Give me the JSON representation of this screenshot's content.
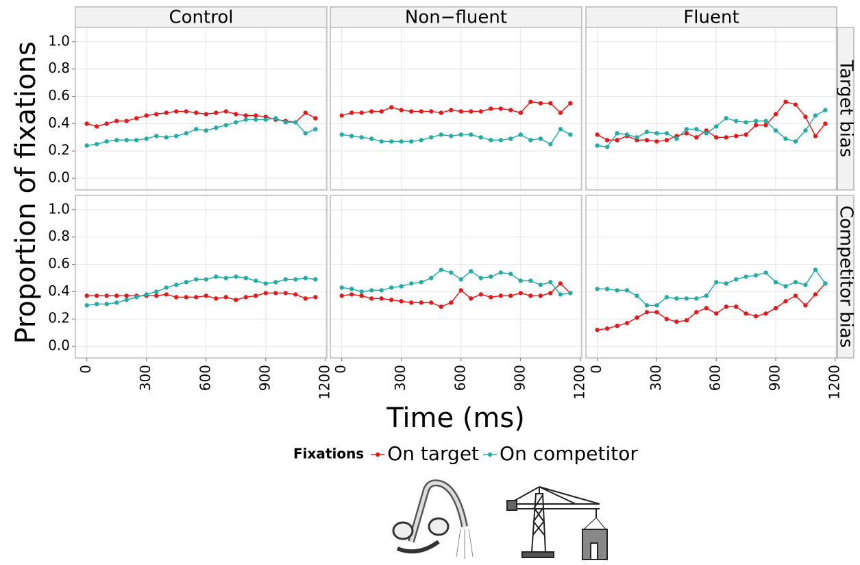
{
  "chart_data": [
    {
      "type": "line",
      "x": [
        0,
        50,
        100,
        150,
        200,
        250,
        300,
        350,
        400,
        450,
        500,
        550,
        600,
        650,
        700,
        750,
        800,
        850,
        900,
        950,
        1000,
        1050,
        1100,
        1150
      ],
      "series": [
        {
          "name": "On target",
          "color": "#e31a1c",
          "values": [
            0.4,
            0.38,
            0.4,
            0.42,
            0.42,
            0.44,
            0.46,
            0.47,
            0.48,
            0.49,
            0.49,
            0.48,
            0.47,
            0.48,
            0.49,
            0.47,
            0.46,
            0.46,
            0.45,
            0.43,
            0.42,
            0.41,
            0.48,
            0.44
          ]
        },
        {
          "name": "On competitor",
          "color": "#26aba4",
          "values": [
            0.24,
            0.25,
            0.27,
            0.28,
            0.28,
            0.28,
            0.29,
            0.31,
            0.3,
            0.31,
            0.33,
            0.36,
            0.35,
            0.37,
            0.39,
            0.41,
            0.43,
            0.43,
            0.43,
            0.44,
            0.41,
            0.41,
            0.33,
            0.36
          ]
        }
      ],
      "xlim": [
        -57.5,
        1207.5
      ],
      "ylim": [
        -0.085,
        1.105
      ],
      "xticks": [
        0,
        300,
        600,
        900,
        1200
      ],
      "yticks": [
        {
          "value": 0,
          "label": "0.0"
        },
        0.2,
        0.4,
        0.6,
        0.8,
        {
          "value": 1,
          "label": "1.0"
        }
      ],
      "grid": true
    },
    {
      "type": "line",
      "x": [
        0,
        50,
        100,
        150,
        200,
        250,
        300,
        350,
        400,
        450,
        500,
        550,
        600,
        650,
        700,
        750,
        800,
        850,
        900,
        950,
        1000,
        1050,
        1100,
        1150
      ],
      "series": [
        {
          "name": "On target",
          "color": "#e31a1c",
          "values": [
            0.46,
            0.48,
            0.48,
            0.49,
            0.49,
            0.52,
            0.5,
            0.49,
            0.49,
            0.49,
            0.48,
            0.5,
            0.49,
            0.49,
            0.49,
            0.51,
            0.51,
            0.5,
            0.48,
            0.56,
            0.55,
            0.55,
            0.48,
            0.55
          ]
        },
        {
          "name": "On competitor",
          "color": "#26aba4",
          "values": [
            0.32,
            0.31,
            0.3,
            0.29,
            0.27,
            0.27,
            0.27,
            0.27,
            0.28,
            0.3,
            0.32,
            0.31,
            0.32,
            0.32,
            0.3,
            0.28,
            0.28,
            0.29,
            0.32,
            0.28,
            0.29,
            0.25,
            0.36,
            0.32
          ]
        }
      ],
      "xlim": [
        -57.5,
        1207.5
      ],
      "ylim": [
        -0.085,
        1.105
      ],
      "xticks": [
        0,
        300,
        600,
        900,
        1200
      ],
      "yticks": [
        {
          "value": 0,
          "label": "0.0"
        },
        0.2,
        0.4,
        0.6,
        0.8,
        {
          "value": 1,
          "label": "1.0"
        }
      ],
      "grid": true
    },
    {
      "type": "line",
      "x": [
        0,
        50,
        100,
        150,
        200,
        250,
        300,
        350,
        400,
        450,
        500,
        550,
        600,
        650,
        700,
        750,
        800,
        850,
        900,
        950,
        1000,
        1050,
        1100,
        1150
      ],
      "series": [
        {
          "name": "On target",
          "color": "#e31a1c",
          "values": [
            0.32,
            0.28,
            0.28,
            0.31,
            0.28,
            0.28,
            0.27,
            0.28,
            0.31,
            0.33,
            0.3,
            0.35,
            0.3,
            0.3,
            0.31,
            0.32,
            0.39,
            0.39,
            0.47,
            0.56,
            0.54,
            0.45,
            0.31,
            0.4
          ]
        },
        {
          "name": "On competitor",
          "color": "#26aba4",
          "values": [
            0.24,
            0.23,
            0.33,
            0.32,
            0.3,
            0.34,
            0.33,
            0.33,
            0.29,
            0.36,
            0.36,
            0.33,
            0.38,
            0.44,
            0.42,
            0.41,
            0.42,
            0.42,
            0.35,
            0.29,
            0.27,
            0.35,
            0.46,
            0.5
          ]
        }
      ],
      "xlim": [
        -57.5,
        1207.5
      ],
      "ylim": [
        -0.085,
        1.105
      ],
      "xticks": [
        0,
        300,
        600,
        900,
        1200
      ],
      "yticks": [
        {
          "value": 0,
          "label": "0.0"
        },
        0.2,
        0.4,
        0.6,
        0.8,
        {
          "value": 1,
          "label": "1.0"
        }
      ],
      "grid": true
    },
    {
      "type": "line",
      "x": [
        0,
        50,
        100,
        150,
        200,
        250,
        300,
        350,
        400,
        450,
        500,
        550,
        600,
        650,
        700,
        750,
        800,
        850,
        900,
        950,
        1000,
        1050,
        1100,
        1150
      ],
      "series": [
        {
          "name": "On target",
          "color": "#e31a1c",
          "values": [
            0.37,
            0.37,
            0.37,
            0.37,
            0.37,
            0.37,
            0.37,
            0.37,
            0.38,
            0.36,
            0.36,
            0.36,
            0.37,
            0.35,
            0.36,
            0.34,
            0.36,
            0.37,
            0.39,
            0.39,
            0.39,
            0.38,
            0.35,
            0.36
          ]
        },
        {
          "name": "On competitor",
          "color": "#26aba4",
          "values": [
            0.3,
            0.31,
            0.31,
            0.32,
            0.34,
            0.36,
            0.38,
            0.4,
            0.43,
            0.45,
            0.47,
            0.49,
            0.49,
            0.51,
            0.5,
            0.51,
            0.5,
            0.48,
            0.46,
            0.47,
            0.49,
            0.49,
            0.5,
            0.49
          ]
        }
      ],
      "xlim": [
        -57.5,
        1207.5
      ],
      "ylim": [
        -0.085,
        1.105
      ],
      "xticks": [
        0,
        300,
        600,
        900,
        1200
      ],
      "yticks": [
        {
          "value": 0,
          "label": "0.0"
        },
        0.2,
        0.4,
        0.6,
        0.8,
        {
          "value": 1,
          "label": "1.0"
        }
      ],
      "grid": true
    },
    {
      "type": "line",
      "x": [
        0,
        50,
        100,
        150,
        200,
        250,
        300,
        350,
        400,
        450,
        500,
        550,
        600,
        650,
        700,
        750,
        800,
        850,
        900,
        950,
        1000,
        1050,
        1100,
        1150
      ],
      "series": [
        {
          "name": "On target",
          "color": "#e31a1c",
          "values": [
            0.37,
            0.38,
            0.37,
            0.35,
            0.35,
            0.34,
            0.33,
            0.32,
            0.32,
            0.32,
            0.29,
            0.32,
            0.41,
            0.35,
            0.38,
            0.36,
            0.37,
            0.37,
            0.39,
            0.37,
            0.37,
            0.39,
            0.46,
            0.39
          ]
        },
        {
          "name": "On competitor",
          "color": "#26aba4",
          "values": [
            0.43,
            0.42,
            0.4,
            0.41,
            0.41,
            0.43,
            0.44,
            0.46,
            0.47,
            0.5,
            0.56,
            0.54,
            0.49,
            0.55,
            0.5,
            0.51,
            0.54,
            0.53,
            0.48,
            0.48,
            0.45,
            0.47,
            0.38,
            0.39
          ]
        }
      ],
      "xlim": [
        -57.5,
        1207.5
      ],
      "ylim": [
        -0.085,
        1.105
      ],
      "xticks": [
        0,
        300,
        600,
        900,
        1200
      ],
      "yticks": [
        {
          "value": 0,
          "label": "0.0"
        },
        0.2,
        0.4,
        0.6,
        0.8,
        {
          "value": 1,
          "label": "1.0"
        }
      ],
      "grid": true
    },
    {
      "type": "line",
      "x": [
        0,
        50,
        100,
        150,
        200,
        250,
        300,
        350,
        400,
        450,
        500,
        550,
        600,
        650,
        700,
        750,
        800,
        850,
        900,
        950,
        1000,
        1050,
        1100,
        1150
      ],
      "series": [
        {
          "name": "On target",
          "color": "#e31a1c",
          "values": [
            0.12,
            0.13,
            0.15,
            0.17,
            0.21,
            0.25,
            0.25,
            0.2,
            0.18,
            0.19,
            0.25,
            0.28,
            0.24,
            0.29,
            0.29,
            0.24,
            0.22,
            0.24,
            0.28,
            0.33,
            0.37,
            0.3,
            0.38,
            0.46
          ]
        },
        {
          "name": "On competitor",
          "color": "#26aba4",
          "values": [
            0.42,
            0.42,
            0.41,
            0.41,
            0.37,
            0.3,
            0.3,
            0.36,
            0.35,
            0.35,
            0.35,
            0.37,
            0.47,
            0.46,
            0.49,
            0.51,
            0.52,
            0.54,
            0.47,
            0.44,
            0.47,
            0.45,
            0.56,
            0.46
          ]
        }
      ],
      "xlim": [
        -57.5,
        1207.5
      ],
      "ylim": [
        -0.085,
        1.105
      ],
      "xticks": [
        0,
        300,
        600,
        900,
        1200
      ],
      "yticks": [
        {
          "value": 0,
          "label": "0.0"
        },
        0.2,
        0.4,
        0.6,
        0.8,
        {
          "value": 1,
          "label": "1.0"
        }
      ],
      "grid": true
    }
  ],
  "columns": [
    "Control",
    "Non−fluent",
    "Fluent"
  ],
  "rows": [
    "Target bias",
    "Competitor bias"
  ],
  "x_label": "Time (ms)",
  "y_label": "Proportion of fixations",
  "legend": {
    "title": "Fixations"
  }
}
